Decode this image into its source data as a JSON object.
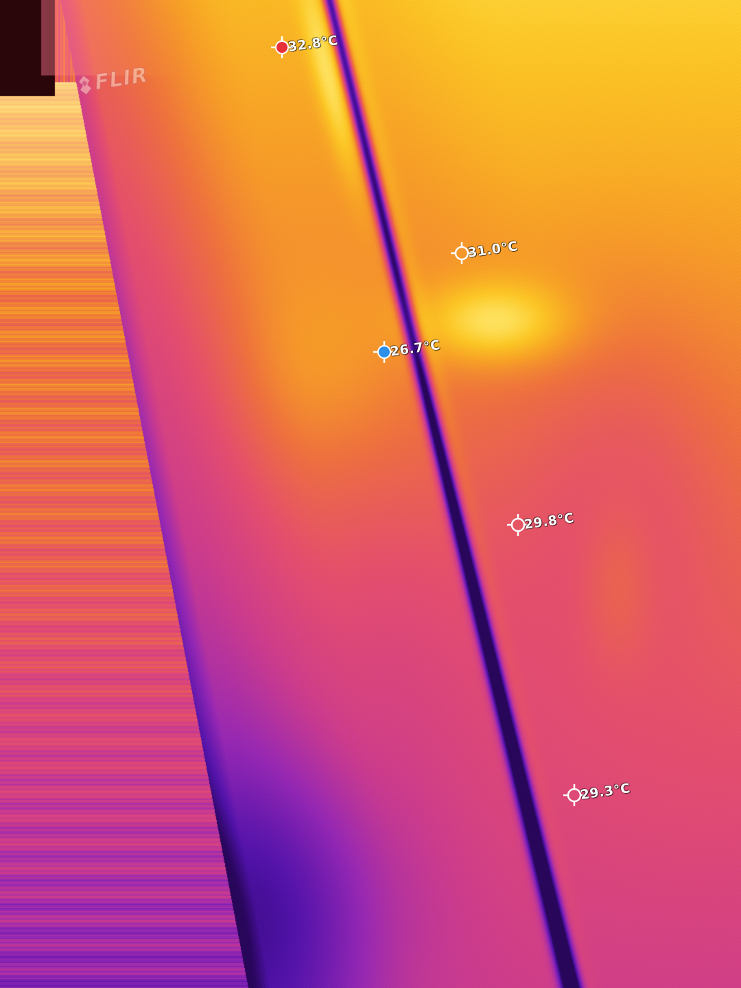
{
  "brand": {
    "logo_text": "FLIR",
    "logo_icon": "flir-flame-icon"
  },
  "palette": {
    "name": "iron",
    "colors": [
      "#3a0a8a",
      "#7a1fb0",
      "#c8359a",
      "#e4497a",
      "#f07a3c",
      "#f8a62a",
      "#fcd02a",
      "#fff07a"
    ]
  },
  "spots": [
    {
      "id": "spot-hot",
      "label": "32.8°C",
      "marker": "hot",
      "marker_color": "#e8303a"
    },
    {
      "id": "spot-1",
      "label": "31.0°C",
      "marker": "crosshair",
      "marker_color": "#ffffff"
    },
    {
      "id": "spot-cold",
      "label": "26.7°C",
      "marker": "cold",
      "marker_color": "#2e8fe8"
    },
    {
      "id": "spot-2",
      "label": "29.8°C",
      "marker": "crosshair",
      "marker_color": "#ffffff"
    },
    {
      "id": "spot-3",
      "label": "29.3°C",
      "marker": "crosshair",
      "marker_color": "#ffffff"
    }
  ]
}
